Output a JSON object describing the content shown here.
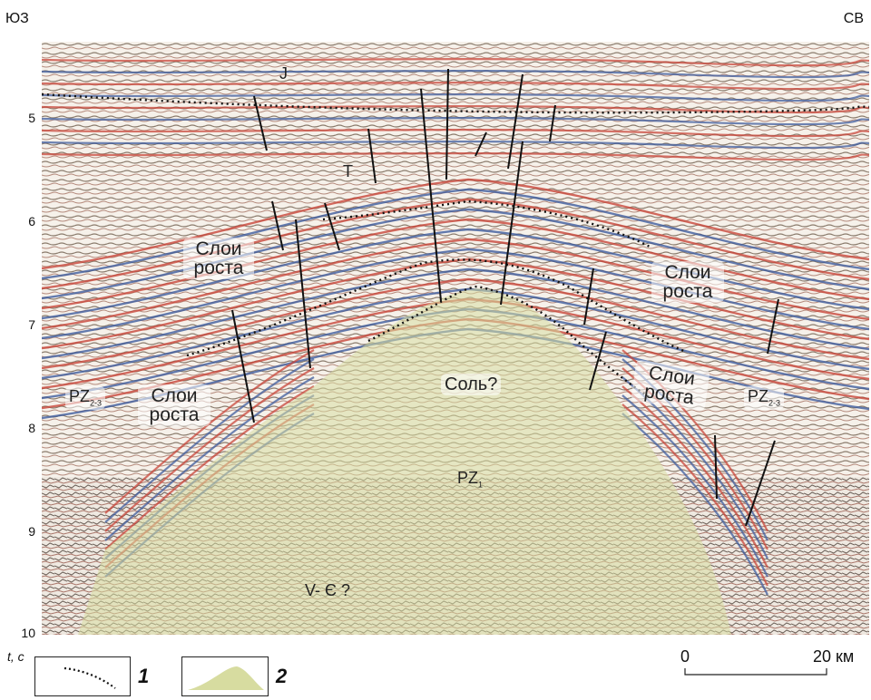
{
  "corners": {
    "left": "ЮЗ",
    "right": "СВ"
  },
  "yaxis": {
    "ticks": [
      "5",
      "6",
      "7",
      "8",
      "9",
      "10"
    ],
    "tick_values": [
      5,
      6,
      7,
      8,
      9,
      10
    ],
    "label": "t, с",
    "range": [
      4.35,
      10
    ]
  },
  "labels": {
    "j": "J",
    "t": "T",
    "growth_left_upper": "Слои роста",
    "growth_right_upper": "Слои роста",
    "growth_left_lower": "Слои роста",
    "growth_right_lower": "Слои роста",
    "pz23_left_main": "PZ",
    "pz23_left_sub": "2-3",
    "pz23_right_main": "PZ",
    "pz23_right_sub": "2-3",
    "salt": "Соль?",
    "pz1_main": "PZ",
    "pz1_sub": "1",
    "vcambrian": "V- Є ?"
  },
  "scale": {
    "start": "0",
    "end": "20 км"
  },
  "legend": {
    "item1": "1",
    "item2": "2"
  },
  "colors": {
    "red": "#c8463a",
    "blue": "#3f5c9e",
    "dotted": "#111111",
    "fault": "#111111",
    "salt": "#d7dca0"
  }
}
